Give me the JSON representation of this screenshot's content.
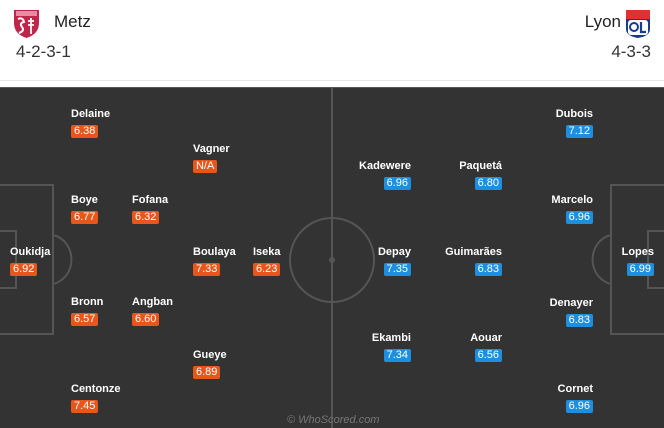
{
  "home": {
    "name": "Metz",
    "formation": "4-2-3-1",
    "crest_text": "FC METZ",
    "color": "#e8561c",
    "players": [
      {
        "name": "Delaine",
        "rating": "6.38"
      },
      {
        "name": "Vagner",
        "rating": "N/A"
      },
      {
        "name": "Boye",
        "rating": "6.77"
      },
      {
        "name": "Fofana",
        "rating": "6.32"
      },
      {
        "name": "Oukidja",
        "rating": "6.92"
      },
      {
        "name": "Boulaya",
        "rating": "7.33"
      },
      {
        "name": "Iseka",
        "rating": "6.23"
      },
      {
        "name": "Bronn",
        "rating": "6.57"
      },
      {
        "name": "Angban",
        "rating": "6.60"
      },
      {
        "name": "Gueye",
        "rating": "6.89"
      },
      {
        "name": "Centonze",
        "rating": "7.45"
      }
    ]
  },
  "away": {
    "name": "Lyon",
    "formation": "4-3-3",
    "crest_text": "OLYMPIQUE LYONNAIS OL",
    "color": "#1c8fe0",
    "players": [
      {
        "name": "Dubois",
        "rating": "7.12"
      },
      {
        "name": "Kadewere",
        "rating": "6.96"
      },
      {
        "name": "Paquetá",
        "rating": "6.80"
      },
      {
        "name": "Marcelo",
        "rating": "6.96"
      },
      {
        "name": "Depay",
        "rating": "7.35"
      },
      {
        "name": "Guimarães",
        "rating": "6.83"
      },
      {
        "name": "Lopes",
        "rating": "6.99"
      },
      {
        "name": "Denayer",
        "rating": "6.83"
      },
      {
        "name": "Ekambi",
        "rating": "7.34"
      },
      {
        "name": "Aouar",
        "rating": "6.56"
      },
      {
        "name": "Cornet",
        "rating": "6.96"
      }
    ]
  },
  "watermark": "© WhoScored.com"
}
